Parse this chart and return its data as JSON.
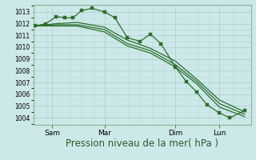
{
  "background_color": "#cce8e8",
  "grid_color_major": "#aacccc",
  "grid_color_minor": "#c0dada",
  "line_color": "#2d6e2d",
  "ylabel_ticks": [
    1004,
    1005,
    1006,
    1007,
    1008,
    1009,
    1010,
    1011,
    1012,
    1013
  ],
  "ylim": [
    1003.4,
    1013.6
  ],
  "xtick_labels": [
    "Sam",
    "Mar",
    "Dim",
    "Lun"
  ],
  "xtick_positions": [
    0.08,
    0.33,
    0.67,
    0.88
  ],
  "xlabel": "Pression niveau de la mer( hPa )",
  "xlabel_fontsize": 8.5,
  "line1_x": [
    0.0,
    0.05,
    0.1,
    0.14,
    0.18,
    0.22,
    0.27,
    0.33,
    0.38,
    0.44,
    0.5,
    0.55,
    0.6,
    0.67,
    0.72,
    0.77,
    0.82,
    0.88,
    0.93,
    1.0
  ],
  "line1_y": [
    1011.8,
    1012.0,
    1012.6,
    1012.5,
    1012.5,
    1013.1,
    1013.3,
    1013.0,
    1012.5,
    1010.8,
    1010.5,
    1011.1,
    1010.3,
    1008.3,
    1007.1,
    1006.2,
    1005.1,
    1004.4,
    1004.0,
    1004.6
  ],
  "line2_x": [
    0.0,
    0.1,
    0.2,
    0.33,
    0.44,
    0.55,
    0.67,
    0.77,
    0.88,
    1.0
  ],
  "line2_y": [
    1011.8,
    1012.0,
    1012.1,
    1011.7,
    1010.6,
    1009.9,
    1008.8,
    1007.3,
    1005.5,
    1004.5
  ],
  "line3_x": [
    0.0,
    0.1,
    0.2,
    0.33,
    0.44,
    0.55,
    0.67,
    0.77,
    0.88,
    1.0
  ],
  "line3_y": [
    1011.8,
    1011.9,
    1011.9,
    1011.5,
    1010.3,
    1009.7,
    1008.5,
    1007.1,
    1005.2,
    1004.3
  ],
  "line4_x": [
    0.0,
    0.1,
    0.2,
    0.33,
    0.44,
    0.55,
    0.67,
    0.77,
    0.88,
    1.0
  ],
  "line4_y": [
    1011.8,
    1011.8,
    1011.8,
    1011.3,
    1010.1,
    1009.5,
    1008.3,
    1006.9,
    1004.9,
    1004.1
  ]
}
